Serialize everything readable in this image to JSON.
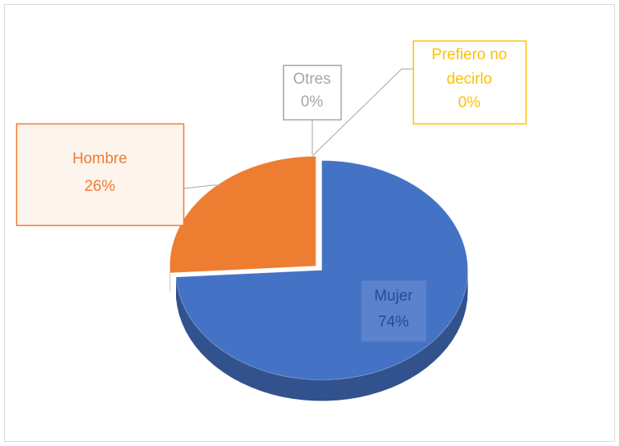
{
  "chart_data": {
    "type": "pie3d",
    "categories": [
      "Mujer",
      "Hombre",
      "Otres",
      "Prefiero no decirlo"
    ],
    "values": [
      74,
      26,
      0,
      0
    ],
    "value_labels": [
      "74%",
      "26%",
      "0%",
      "0%"
    ],
    "colors": [
      "#4472c4",
      "#ed7d31",
      "#a5a5a5",
      "#ffc000"
    ]
  }
}
